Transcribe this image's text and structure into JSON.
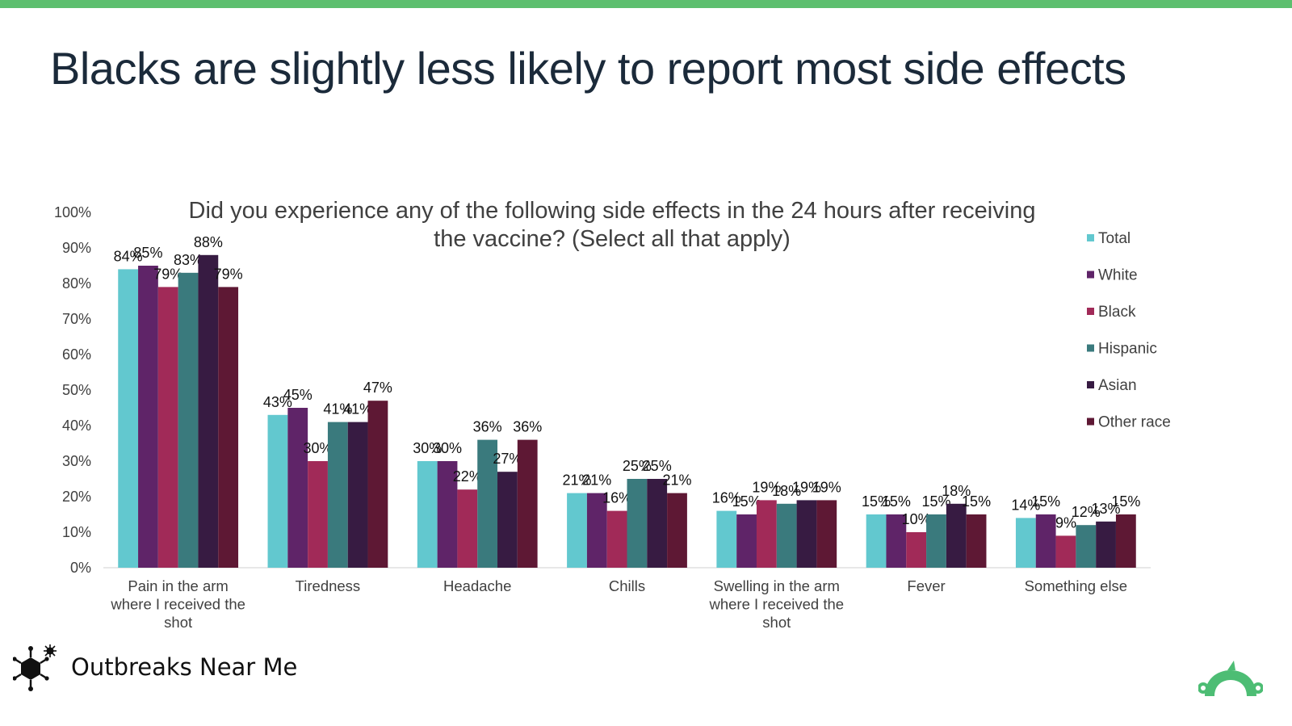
{
  "slide": {
    "title": "Blacks are slightly less likely to report most side effects",
    "accent_color": "#5dbf6f"
  },
  "footer": {
    "brand_name": "Outbreaks Near Me",
    "brand_icon": "virus-icon",
    "corner_logo": "surveymonkey-logo"
  },
  "chart_data": {
    "type": "bar",
    "title": "Did you experience any of the following side effects in the 24 hours after receiving the vaccine? (Select all that apply)",
    "title_lines": [
      "Did you experience any of the following side effects in the 24 hours after receiving",
      "the vaccine? (Select all that apply)"
    ],
    "categories": [
      "Pain in the arm where I received the shot",
      "Tiredness",
      "Headache",
      "Chills",
      "Swelling in the arm where I received the shot",
      "Fever",
      "Something else"
    ],
    "category_lines": [
      [
        "Pain in the arm",
        "where I received the",
        "shot"
      ],
      [
        "Tiredness"
      ],
      [
        "Headache"
      ],
      [
        "Chills"
      ],
      [
        "Swelling in the arm",
        "where I received the",
        "shot"
      ],
      [
        "Fever"
      ],
      [
        "Something else"
      ]
    ],
    "series": [
      {
        "name": "Total",
        "color": "#62c8cf",
        "values": [
          84,
          43,
          30,
          21,
          16,
          15,
          14
        ]
      },
      {
        "name": "White",
        "color": "#5f2468",
        "values": [
          85,
          45,
          30,
          21,
          15,
          15,
          15
        ]
      },
      {
        "name": "Black",
        "color": "#a12a58",
        "values": [
          79,
          30,
          22,
          16,
          19,
          10,
          9
        ]
      },
      {
        "name": "Hispanic",
        "color": "#3a7a7d",
        "values": [
          83,
          41,
          36,
          25,
          18,
          15,
          12
        ]
      },
      {
        "name": "Asian",
        "color": "#371b42",
        "values": [
          88,
          41,
          27,
          25,
          19,
          18,
          13
        ]
      },
      {
        "name": "Other race",
        "color": "#5e1834",
        "values": [
          79,
          47,
          36,
          21,
          19,
          15,
          15
        ]
      }
    ],
    "value_suffix": "%",
    "ylim": [
      0,
      100
    ],
    "yticks": [
      "0%",
      "10%",
      "20%",
      "30%",
      "40%",
      "50%",
      "60%",
      "70%",
      "80%",
      "90%",
      "100%"
    ],
    "legend_position": "right",
    "grid": false
  }
}
